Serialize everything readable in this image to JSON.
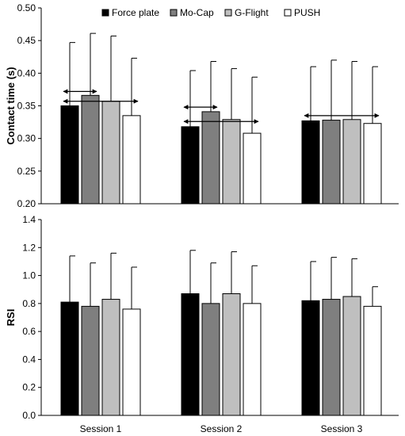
{
  "chart_data": [
    {
      "type": "bar",
      "title": "",
      "xlabel": "",
      "ylabel": "Contact time (s)",
      "ylim": [
        0.2,
        0.5
      ],
      "yticks": [
        "0.20",
        "0.25",
        "0.30",
        "0.35",
        "0.40",
        "0.45",
        "0.50"
      ],
      "categories": [
        "Session 1",
        "Session 2",
        "Session 3"
      ],
      "legend_position": "top",
      "series": [
        {
          "name": "Force plate",
          "color": "#000000",
          "values": [
            0.35,
            0.318,
            0.327
          ],
          "error": [
            0.097,
            0.086,
            0.083
          ]
        },
        {
          "name": "Mo-Cap",
          "color": "#7f7f7f",
          "values": [
            0.366,
            0.341,
            0.328
          ],
          "error": [
            0.095,
            0.077,
            0.092
          ]
        },
        {
          "name": "G-Flight",
          "color": "#bfbfbf",
          "values": [
            0.357,
            0.329,
            0.329
          ],
          "error": [
            0.1,
            0.078,
            0.089
          ]
        },
        {
          "name": "PUSH",
          "color": "#ffffff",
          "values": [
            0.335,
            0.308,
            0.323
          ],
          "error": [
            0.088,
            0.086,
            0.087
          ]
        }
      ],
      "annotations": [
        {
          "type": "double-arrow",
          "session": 0,
          "from_series": 0,
          "to_series": 1,
          "y": 0.372
        },
        {
          "type": "double-arrow",
          "session": 0,
          "from_series": 0,
          "to_series": 3,
          "y": 0.357
        },
        {
          "type": "double-arrow",
          "session": 1,
          "from_series": 0,
          "to_series": 1,
          "y": 0.348
        },
        {
          "type": "double-arrow",
          "session": 1,
          "from_series": 0,
          "to_series": 3,
          "y": 0.326
        },
        {
          "type": "double-arrow",
          "session": 2,
          "from_series": 0,
          "to_series": 3,
          "y": 0.335
        }
      ]
    },
    {
      "type": "bar",
      "title": "",
      "xlabel": "",
      "ylabel": "RSI",
      "ylim": [
        0.0,
        1.4
      ],
      "yticks": [
        "0.0",
        "0.2",
        "0.4",
        "0.6",
        "0.8",
        "1.0",
        "1.2",
        "1.4"
      ],
      "categories": [
        "Session 1",
        "Session 2",
        "Session 3"
      ],
      "series": [
        {
          "name": "Force plate",
          "color": "#000000",
          "values": [
            0.81,
            0.87,
            0.82
          ],
          "error": [
            0.33,
            0.31,
            0.28
          ]
        },
        {
          "name": "Mo-Cap",
          "color": "#7f7f7f",
          "values": [
            0.78,
            0.8,
            0.83
          ],
          "error": [
            0.31,
            0.29,
            0.3
          ]
        },
        {
          "name": "G-Flight",
          "color": "#bfbfbf",
          "values": [
            0.83,
            0.87,
            0.85
          ],
          "error": [
            0.33,
            0.3,
            0.27
          ]
        },
        {
          "name": "PUSH",
          "color": "#ffffff",
          "values": [
            0.76,
            0.8,
            0.78
          ],
          "error": [
            0.3,
            0.27,
            0.14
          ]
        }
      ]
    }
  ]
}
